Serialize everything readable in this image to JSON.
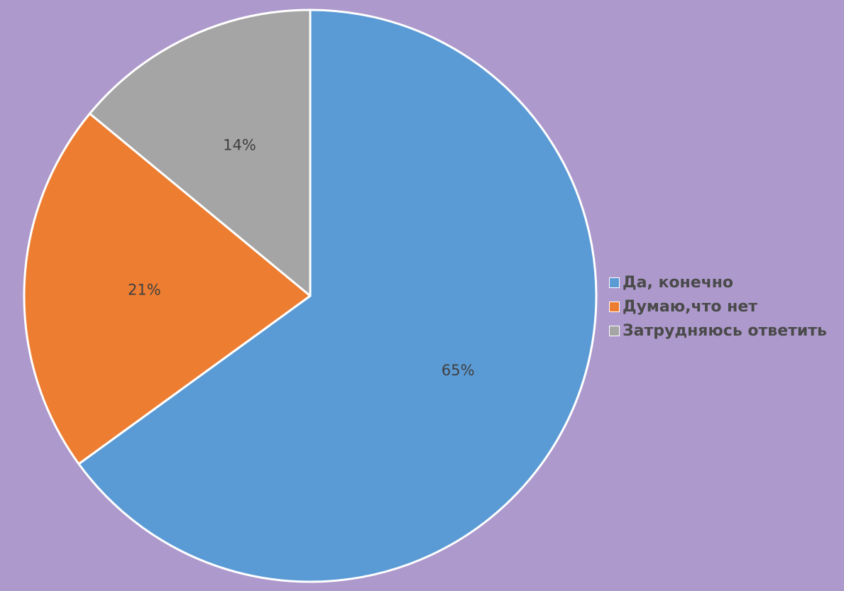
{
  "chart_data": {
    "type": "pie",
    "title": "",
    "categories": [
      "Да, конечно",
      "Думаю,что нет",
      "Затрудняюсь ответить"
    ],
    "values": [
      65,
      21,
      14
    ],
    "labels": [
      "65%",
      "21%",
      "14%"
    ],
    "colors": [
      "#5b9bd5",
      "#ed7d31",
      "#a5a5a5"
    ],
    "start_angle": "12 o'clock",
    "direction": "clockwise",
    "legend": {
      "placement": "right"
    }
  }
}
